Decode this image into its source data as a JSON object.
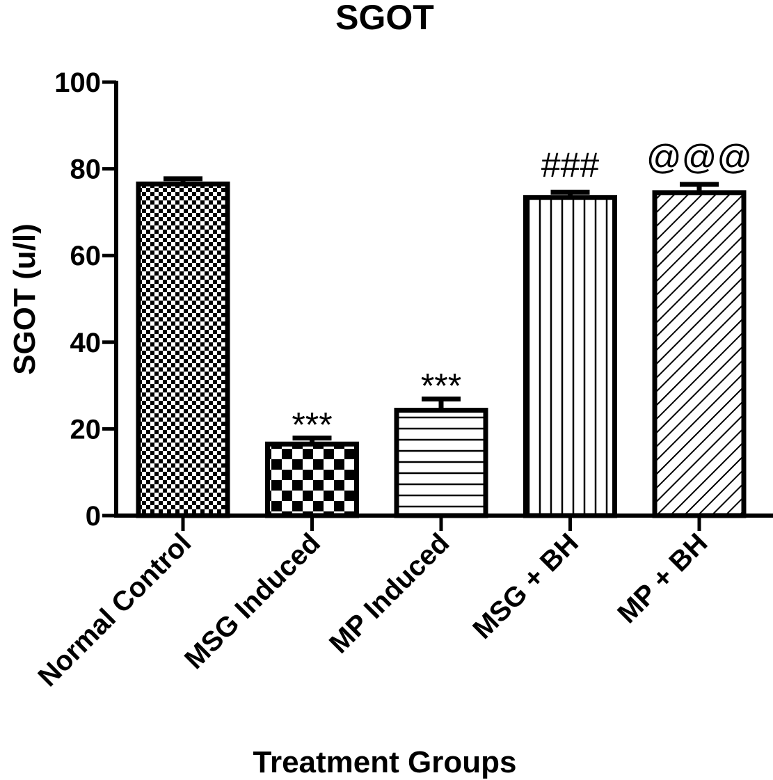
{
  "chart_data": {
    "type": "bar",
    "title": "SGOT",
    "xlabel": "Treatment Groups",
    "ylabel": "SGOT (u/l)",
    "ylim": [
      0,
      100
    ],
    "yticks": [
      0,
      20,
      40,
      60,
      80,
      100
    ],
    "categories": [
      "Normal Control",
      "MSG Induced",
      "MP Induced",
      "MSG + BH",
      "MP + BH"
    ],
    "values": [
      76.5,
      16.5,
      24.3,
      73.4,
      74.5
    ],
    "errors": [
      1.2,
      1.4,
      2.6,
      1.2,
      1.9
    ],
    "annotations": [
      "",
      "***",
      "***",
      "###",
      "@@@"
    ],
    "patterns": [
      "checker-fine",
      "checker-coarse",
      "horizontal-lines",
      "vertical-lines",
      "diagonal-lines"
    ],
    "colors": {
      "bar_fill": "#ffffff",
      "stroke": "#000000"
    }
  }
}
